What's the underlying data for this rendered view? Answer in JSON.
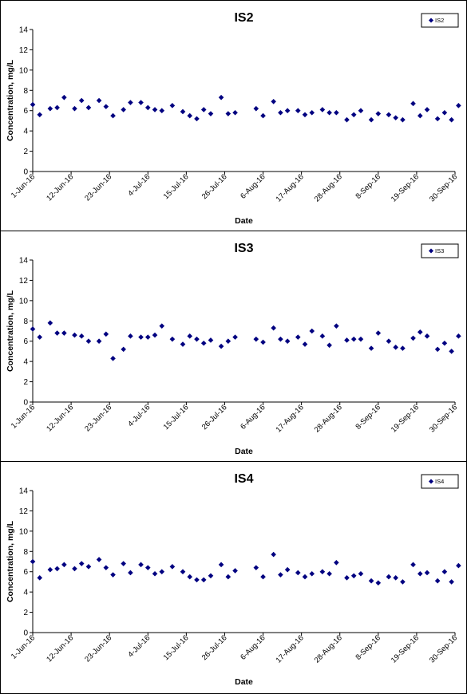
{
  "chart_data": [
    {
      "type": "scatter",
      "title": "IS2",
      "xlabel": "Date",
      "ylabel": "Concentration, mg/L",
      "ylim": [
        0,
        14
      ],
      "yticks": [
        0,
        2,
        4,
        6,
        8,
        10,
        12,
        14
      ],
      "xlim": [
        "2016-06-01",
        "2016-09-30"
      ],
      "xticklabels": [
        "1-Jun-16",
        "12-Jun-16",
        "23-Jun-16",
        "4-Jul-16",
        "15-Jul-16",
        "26-Jul-16",
        "6-Aug-16",
        "17-Aug-16",
        "28-Aug-16",
        "8-Sep-16",
        "19-Sep-16",
        "30-Sep-16"
      ],
      "legend": "top-right",
      "marker_color": "#000080",
      "series": [
        {
          "name": "IS2",
          "points": [
            [
              "2016-06-01",
              6.6
            ],
            [
              "2016-06-03",
              5.6
            ],
            [
              "2016-06-06",
              6.2
            ],
            [
              "2016-06-08",
              6.3
            ],
            [
              "2016-06-10",
              7.3
            ],
            [
              "2016-06-13",
              6.2
            ],
            [
              "2016-06-15",
              7.0
            ],
            [
              "2016-06-17",
              6.3
            ],
            [
              "2016-06-20",
              7.0
            ],
            [
              "2016-06-22",
              6.4
            ],
            [
              "2016-06-24",
              5.5
            ],
            [
              "2016-06-27",
              6.1
            ],
            [
              "2016-06-29",
              6.8
            ],
            [
              "2016-07-02",
              6.8
            ],
            [
              "2016-07-04",
              6.3
            ],
            [
              "2016-07-06",
              6.1
            ],
            [
              "2016-07-08",
              6.0
            ],
            [
              "2016-07-11",
              6.5
            ],
            [
              "2016-07-14",
              5.9
            ],
            [
              "2016-07-16",
              5.5
            ],
            [
              "2016-07-18",
              5.2
            ],
            [
              "2016-07-20",
              6.1
            ],
            [
              "2016-07-22",
              5.7
            ],
            [
              "2016-07-25",
              7.3
            ],
            [
              "2016-07-27",
              5.7
            ],
            [
              "2016-07-29",
              5.8
            ],
            [
              "2016-08-04",
              6.2
            ],
            [
              "2016-08-06",
              5.5
            ],
            [
              "2016-08-09",
              6.9
            ],
            [
              "2016-08-11",
              5.8
            ],
            [
              "2016-08-13",
              6.0
            ],
            [
              "2016-08-16",
              6.0
            ],
            [
              "2016-08-18",
              5.6
            ],
            [
              "2016-08-20",
              5.8
            ],
            [
              "2016-08-23",
              6.1
            ],
            [
              "2016-08-25",
              5.8
            ],
            [
              "2016-08-27",
              5.8
            ],
            [
              "2016-08-30",
              5.1
            ],
            [
              "2016-09-01",
              5.6
            ],
            [
              "2016-09-03",
              6.0
            ],
            [
              "2016-09-06",
              5.1
            ],
            [
              "2016-09-08",
              5.7
            ],
            [
              "2016-09-11",
              5.6
            ],
            [
              "2016-09-13",
              5.3
            ],
            [
              "2016-09-15",
              5.1
            ],
            [
              "2016-09-18",
              6.7
            ],
            [
              "2016-09-20",
              5.5
            ],
            [
              "2016-09-22",
              6.1
            ],
            [
              "2016-09-25",
              5.2
            ],
            [
              "2016-09-27",
              5.8
            ],
            [
              "2016-09-29",
              5.1
            ],
            [
              "2016-10-01",
              6.5
            ]
          ]
        }
      ]
    },
    {
      "type": "scatter",
      "title": "IS3",
      "xlabel": "Date",
      "ylabel": "Concentration, mg/L",
      "ylim": [
        0,
        14
      ],
      "yticks": [
        0,
        2,
        4,
        6,
        8,
        10,
        12,
        14
      ],
      "xlim": [
        "2016-06-01",
        "2016-09-30"
      ],
      "xticklabels": [
        "1-Jun-16",
        "12-Jun-16",
        "23-Jun-16",
        "4-Jul-16",
        "15-Jul-16",
        "26-Jul-16",
        "6-Aug-16",
        "17-Aug-16",
        "28-Aug-16",
        "8-Sep-16",
        "19-Sep-16",
        "30-Sep-16"
      ],
      "legend": "top-right",
      "marker_color": "#000080",
      "series": [
        {
          "name": "IS3",
          "points": [
            [
              "2016-06-01",
              7.2
            ],
            [
              "2016-06-03",
              6.4
            ],
            [
              "2016-06-06",
              7.8
            ],
            [
              "2016-06-08",
              6.8
            ],
            [
              "2016-06-10",
              6.8
            ],
            [
              "2016-06-13",
              6.6
            ],
            [
              "2016-06-15",
              6.5
            ],
            [
              "2016-06-17",
              6.0
            ],
            [
              "2016-06-20",
              6.0
            ],
            [
              "2016-06-22",
              6.7
            ],
            [
              "2016-06-24",
              4.3
            ],
            [
              "2016-06-27",
              5.2
            ],
            [
              "2016-06-29",
              6.5
            ],
            [
              "2016-07-02",
              6.4
            ],
            [
              "2016-07-04",
              6.4
            ],
            [
              "2016-07-06",
              6.6
            ],
            [
              "2016-07-08",
              7.5
            ],
            [
              "2016-07-11",
              6.2
            ],
            [
              "2016-07-14",
              5.7
            ],
            [
              "2016-07-16",
              6.5
            ],
            [
              "2016-07-18",
              6.2
            ],
            [
              "2016-07-20",
              5.8
            ],
            [
              "2016-07-22",
              6.1
            ],
            [
              "2016-07-25",
              5.5
            ],
            [
              "2016-07-27",
              6.0
            ],
            [
              "2016-07-29",
              6.4
            ],
            [
              "2016-08-04",
              6.2
            ],
            [
              "2016-08-06",
              5.9
            ],
            [
              "2016-08-09",
              7.3
            ],
            [
              "2016-08-11",
              6.2
            ],
            [
              "2016-08-13",
              6.0
            ],
            [
              "2016-08-16",
              6.4
            ],
            [
              "2016-08-18",
              5.7
            ],
            [
              "2016-08-20",
              7.0
            ],
            [
              "2016-08-23",
              6.5
            ],
            [
              "2016-08-25",
              5.6
            ],
            [
              "2016-08-27",
              7.5
            ],
            [
              "2016-08-30",
              6.1
            ],
            [
              "2016-09-01",
              6.2
            ],
            [
              "2016-09-03",
              6.2
            ],
            [
              "2016-09-06",
              5.3
            ],
            [
              "2016-09-08",
              6.8
            ],
            [
              "2016-09-11",
              6.0
            ],
            [
              "2016-09-13",
              5.4
            ],
            [
              "2016-09-15",
              5.3
            ],
            [
              "2016-09-18",
              6.3
            ],
            [
              "2016-09-20",
              6.9
            ],
            [
              "2016-09-22",
              6.5
            ],
            [
              "2016-09-25",
              5.2
            ],
            [
              "2016-09-27",
              5.8
            ],
            [
              "2016-09-29",
              5.0
            ],
            [
              "2016-10-01",
              6.5
            ]
          ]
        }
      ]
    },
    {
      "type": "scatter",
      "title": "IS4",
      "xlabel": "Date",
      "ylabel": "Concentration, mg/L",
      "ylim": [
        0,
        14
      ],
      "yticks": [
        0,
        2,
        4,
        6,
        8,
        10,
        12,
        14
      ],
      "xlim": [
        "2016-06-01",
        "2016-09-30"
      ],
      "xticklabels": [
        "1-Jun-16",
        "12-Jun-16",
        "23-Jun-16",
        "4-Jul-16",
        "15-Jul-16",
        "26-Jul-16",
        "6-Aug-16",
        "17-Aug-16",
        "28-Aug-16",
        "8-Sep-16",
        "19-Sep-16",
        "30-Sep-16"
      ],
      "legend": "top-right",
      "marker_color": "#000080",
      "series": [
        {
          "name": "IS4",
          "points": [
            [
              "2016-06-01",
              7.0
            ],
            [
              "2016-06-03",
              5.4
            ],
            [
              "2016-06-06",
              6.2
            ],
            [
              "2016-06-08",
              6.3
            ],
            [
              "2016-06-10",
              6.7
            ],
            [
              "2016-06-13",
              6.3
            ],
            [
              "2016-06-15",
              6.8
            ],
            [
              "2016-06-17",
              6.5
            ],
            [
              "2016-06-20",
              7.2
            ],
            [
              "2016-06-22",
              6.4
            ],
            [
              "2016-06-24",
              5.7
            ],
            [
              "2016-06-27",
              6.8
            ],
            [
              "2016-06-29",
              5.9
            ],
            [
              "2016-07-02",
              6.7
            ],
            [
              "2016-07-04",
              6.4
            ],
            [
              "2016-07-06",
              5.8
            ],
            [
              "2016-07-08",
              6.0
            ],
            [
              "2016-07-11",
              6.5
            ],
            [
              "2016-07-14",
              6.0
            ],
            [
              "2016-07-16",
              5.5
            ],
            [
              "2016-07-18",
              5.2
            ],
            [
              "2016-07-20",
              5.2
            ],
            [
              "2016-07-22",
              5.6
            ],
            [
              "2016-07-25",
              6.7
            ],
            [
              "2016-07-27",
              5.5
            ],
            [
              "2016-07-29",
              6.1
            ],
            [
              "2016-08-04",
              6.4
            ],
            [
              "2016-08-06",
              5.5
            ],
            [
              "2016-08-09",
              7.7
            ],
            [
              "2016-08-11",
              5.7
            ],
            [
              "2016-08-13",
              6.2
            ],
            [
              "2016-08-16",
              5.9
            ],
            [
              "2016-08-18",
              5.5
            ],
            [
              "2016-08-20",
              5.8
            ],
            [
              "2016-08-23",
              6.0
            ],
            [
              "2016-08-25",
              5.8
            ],
            [
              "2016-08-27",
              6.9
            ],
            [
              "2016-08-30",
              5.4
            ],
            [
              "2016-09-01",
              5.6
            ],
            [
              "2016-09-03",
              5.8
            ],
            [
              "2016-09-06",
              5.1
            ],
            [
              "2016-09-08",
              4.9
            ],
            [
              "2016-09-11",
              5.5
            ],
            [
              "2016-09-13",
              5.4
            ],
            [
              "2016-09-15",
              5.0
            ],
            [
              "2016-09-18",
              6.7
            ],
            [
              "2016-09-20",
              5.8
            ],
            [
              "2016-09-22",
              5.9
            ],
            [
              "2016-09-25",
              5.1
            ],
            [
              "2016-09-27",
              6.0
            ],
            [
              "2016-09-29",
              5.0
            ],
            [
              "2016-10-01",
              6.6
            ]
          ]
        }
      ]
    }
  ]
}
